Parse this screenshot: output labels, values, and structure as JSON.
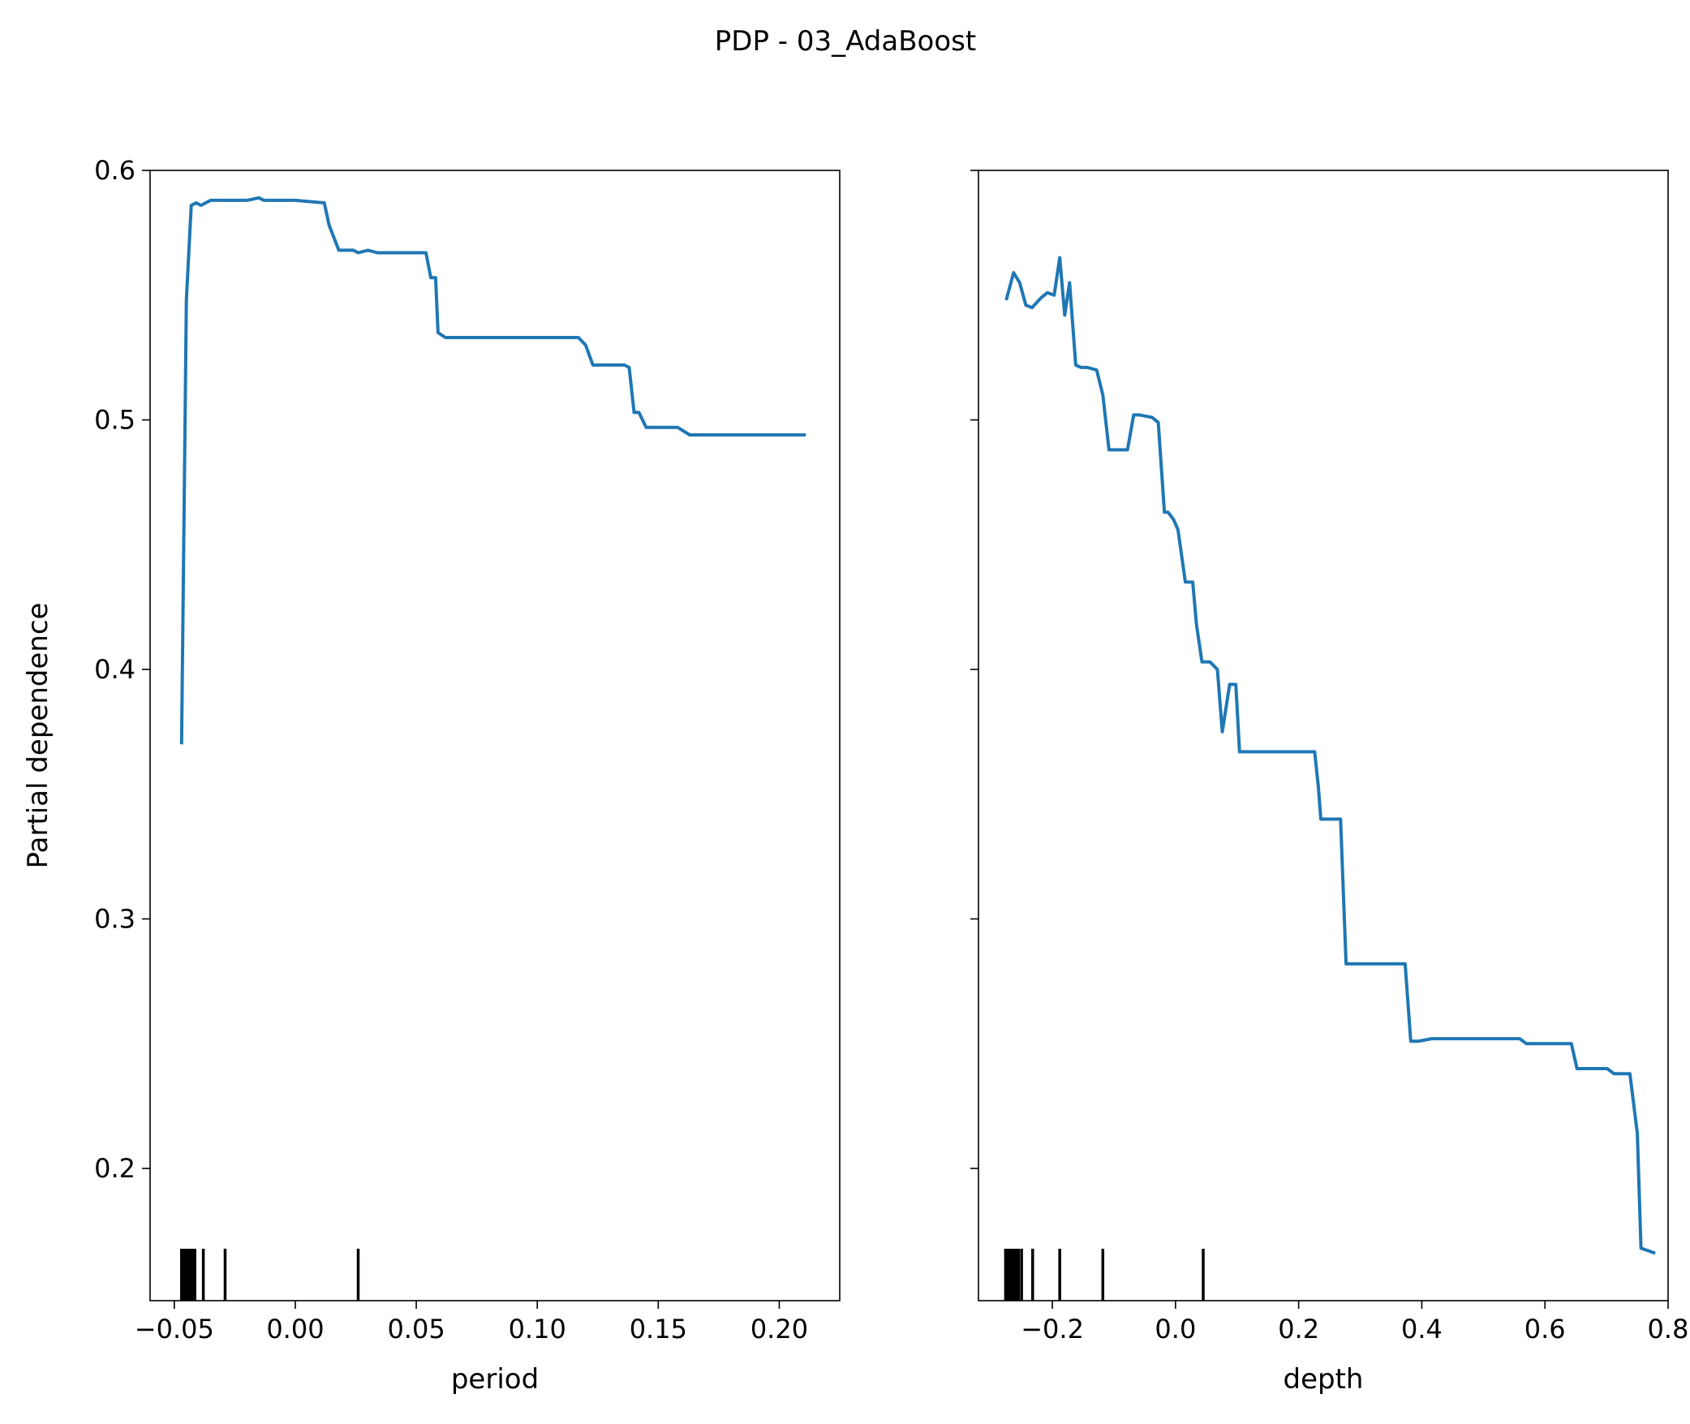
{
  "figure": {
    "title": "PDP - 03_AdaBoost"
  },
  "chart_data": [
    {
      "type": "line",
      "xlabel": "period",
      "ylabel": "Partial dependence",
      "xlim": [
        -0.06,
        0.225
      ],
      "ylim": [
        0.147,
        0.6
      ],
      "xticks": [
        -0.05,
        0.0,
        0.05,
        0.1,
        0.15,
        0.2
      ],
      "xtick_labels": [
        "−0.05",
        "0.00",
        "0.05",
        "0.10",
        "0.15",
        "0.20"
      ],
      "yticks": [
        0.2,
        0.3,
        0.4,
        0.5,
        0.6
      ],
      "ytick_labels": [
        "0.2",
        "0.3",
        "0.4",
        "0.5",
        "0.6"
      ],
      "line_color": "#1f77b4",
      "series": [
        {
          "x": [
            -0.047,
            -0.045,
            -0.043,
            -0.041,
            -0.039,
            -0.037,
            -0.035,
            -0.03,
            -0.02,
            -0.015,
            -0.013,
            0.0,
            0.012,
            0.014,
            0.018,
            0.024,
            0.026,
            0.03,
            0.034,
            0.036,
            0.054,
            0.056,
            0.058,
            0.059,
            0.062,
            0.064,
            0.117,
            0.12,
            0.123,
            0.136,
            0.138,
            0.14,
            0.142,
            0.145,
            0.158,
            0.163,
            0.17,
            0.211
          ],
          "y": [
            0.37,
            0.548,
            0.586,
            0.587,
            0.586,
            0.587,
            0.588,
            0.588,
            0.588,
            0.589,
            0.588,
            0.588,
            0.587,
            0.578,
            0.568,
            0.568,
            0.567,
            0.568,
            0.567,
            0.567,
            0.567,
            0.557,
            0.557,
            0.535,
            0.533,
            0.533,
            0.533,
            0.53,
            0.522,
            0.522,
            0.521,
            0.503,
            0.503,
            0.497,
            0.497,
            0.494,
            0.494,
            0.494
          ]
        }
      ],
      "rug": [
        -0.047,
        -0.0465,
        -0.0455,
        -0.045,
        -0.0445,
        -0.0435,
        -0.043,
        -0.042,
        -0.0415,
        -0.038,
        -0.029,
        0.026
      ]
    },
    {
      "type": "line",
      "xlabel": "depth",
      "ylabel": "",
      "xlim": [
        -0.32,
        0.8
      ],
      "ylim": [
        0.147,
        0.6
      ],
      "xticks": [
        -0.2,
        0.0,
        0.2,
        0.4,
        0.6,
        0.8
      ],
      "xtick_labels": [
        "−0.2",
        "0.0",
        "0.2",
        "0.4",
        "0.6",
        "0.8"
      ],
      "yticks": [
        0.2,
        0.3,
        0.4,
        0.5,
        0.6
      ],
      "ytick_labels": [
        "",
        "",
        "",
        "",
        ""
      ],
      "line_color": "#1f77b4",
      "series": [
        {
          "x": [
            -0.275,
            -0.263,
            -0.253,
            -0.243,
            -0.233,
            -0.218,
            -0.208,
            -0.197,
            -0.188,
            -0.18,
            -0.172,
            -0.162,
            -0.153,
            -0.143,
            -0.128,
            -0.118,
            -0.108,
            -0.078,
            -0.068,
            -0.058,
            -0.038,
            -0.028,
            -0.018,
            -0.012,
            -0.003,
            0.004,
            0.016,
            0.021,
            0.028,
            0.034,
            0.043,
            0.056,
            0.068,
            0.076,
            0.088,
            0.098,
            0.104,
            0.114,
            0.122,
            0.13,
            0.136,
            0.226,
            0.232,
            0.236,
            0.268,
            0.277,
            0.282,
            0.29,
            0.373,
            0.382,
            0.388,
            0.395,
            0.416,
            0.43,
            0.559,
            0.57,
            0.578,
            0.643,
            0.652,
            0.66,
            0.701,
            0.712,
            0.738,
            0.75,
            0.756,
            0.768,
            0.779
          ],
          "y": [
            0.548,
            0.559,
            0.555,
            0.546,
            0.545,
            0.549,
            0.551,
            0.55,
            0.565,
            0.542,
            0.555,
            0.522,
            0.521,
            0.521,
            0.52,
            0.51,
            0.488,
            0.488,
            0.502,
            0.502,
            0.501,
            0.499,
            0.463,
            0.463,
            0.46,
            0.456,
            0.435,
            0.435,
            0.435,
            0.418,
            0.403,
            0.403,
            0.4,
            0.375,
            0.394,
            0.394,
            0.367,
            0.367,
            0.367,
            0.367,
            0.367,
            0.367,
            0.353,
            0.34,
            0.34,
            0.282,
            0.282,
            0.282,
            0.282,
            0.251,
            0.251,
            0.251,
            0.252,
            0.252,
            0.252,
            0.25,
            0.25,
            0.25,
            0.24,
            0.24,
            0.24,
            0.238,
            0.238,
            0.214,
            0.168,
            0.167,
            0.166
          ]
        }
      ],
      "rug": [
        -0.276,
        -0.272,
        -0.268,
        -0.265,
        -0.261,
        -0.257,
        -0.255,
        -0.25,
        -0.232,
        -0.188,
        -0.118,
        0.045
      ]
    }
  ]
}
